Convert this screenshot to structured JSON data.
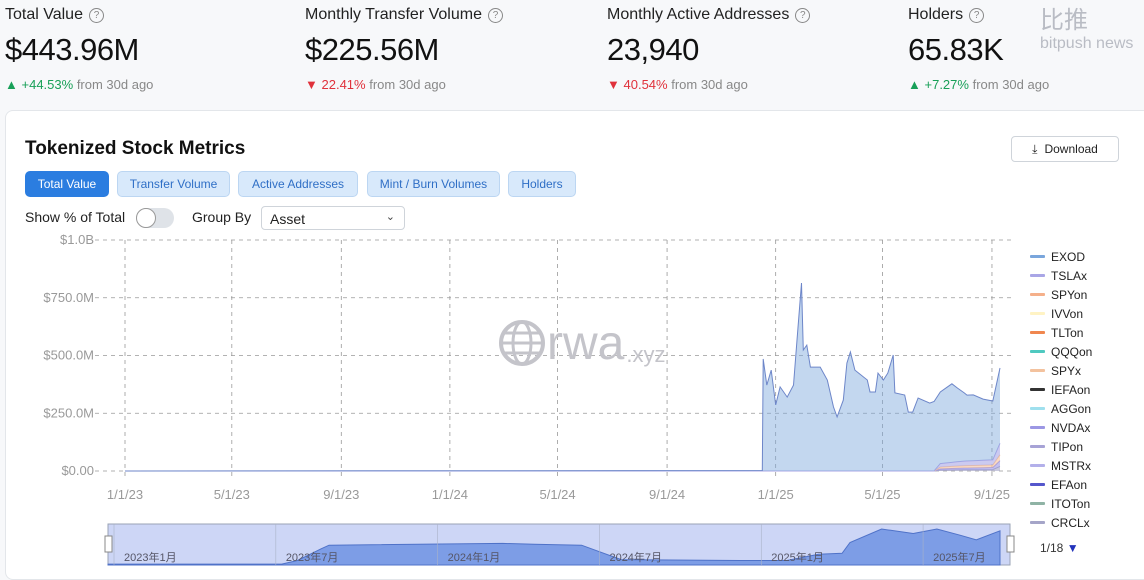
{
  "stats": [
    {
      "label": "Total Value",
      "value": "$443.96M",
      "change": "+44.53%",
      "direction": "up",
      "suffix": "from 30d ago"
    },
    {
      "label": "Monthly Transfer Volume",
      "value": "$225.56M",
      "change": "22.41%",
      "direction": "down",
      "suffix": "from 30d ago"
    },
    {
      "label": "Monthly Active Addresses",
      "value": "23,940",
      "change": "40.54%",
      "direction": "down",
      "suffix": "from 30d ago"
    },
    {
      "label": "Holders",
      "value": "65.83K",
      "change": "+7.27%",
      "direction": "up",
      "suffix": "from 30d ago"
    }
  ],
  "card": {
    "title": "Tokenized Stock Metrics",
    "download_label": "Download"
  },
  "tabs": [
    {
      "label": "Total Value",
      "active": true
    },
    {
      "label": "Transfer Volume"
    },
    {
      "label": "Active Addresses"
    },
    {
      "label": "Mint / Burn Volumes"
    },
    {
      "label": "Holders"
    }
  ],
  "controls": {
    "show_pct_label": "Show % of Total",
    "show_pct_on": false,
    "group_by_label": "Group By",
    "group_by_value": "Asset"
  },
  "watermark": {
    "text": "rwa",
    "suffix": ".xyz"
  },
  "logo": {
    "text": "bitpush news",
    "cn": "比推"
  },
  "legend_page": "1/18",
  "colors": {
    "accent": "#2b7de0",
    "up": "#18a058",
    "down": "#e0313b"
  },
  "chart_data": {
    "type": "area",
    "stacked": true,
    "grid": true,
    "legend_placement": "right",
    "ylim": [
      0,
      1000000000
    ],
    "yticks": [
      {
        "v": 0,
        "label": "$0.00"
      },
      {
        "v": 250000000,
        "label": "$250.0M"
      },
      {
        "v": 500000000,
        "label": "$500.0M"
      },
      {
        "v": 750000000,
        "label": "$750.0M"
      },
      {
        "v": 1000000000,
        "label": "$1.0B"
      }
    ],
    "xticks": [
      {
        "d": "2023-01-01",
        "label": "1/1/23"
      },
      {
        "d": "2023-05-01",
        "label": "5/1/23"
      },
      {
        "d": "2023-09-01",
        "label": "9/1/23"
      },
      {
        "d": "2024-01-01",
        "label": "1/1/24"
      },
      {
        "d": "2024-05-01",
        "label": "5/1/24"
      },
      {
        "d": "2024-09-01",
        "label": "9/1/24"
      },
      {
        "d": "2025-01-01",
        "label": "1/1/25"
      },
      {
        "d": "2025-05-01",
        "label": "5/1/25"
      },
      {
        "d": "2025-09-01",
        "label": "9/1/25"
      }
    ],
    "navigator_ticks": [
      "2023年1月",
      "2023年7月",
      "2024年1月",
      "2024年7月",
      "2025年1月",
      "2025年7月"
    ],
    "legend": [
      {
        "name": "EXOD",
        "color": "#7aa6dc"
      },
      {
        "name": "TSLAx",
        "color": "#a9a6e6"
      },
      {
        "name": "SPYon",
        "color": "#f5b08a"
      },
      {
        "name": "IVVon",
        "color": "#fff3c4"
      },
      {
        "name": "TLTon",
        "color": "#f0874f"
      },
      {
        "name": "QQQon",
        "color": "#4fc9c0"
      },
      {
        "name": "SPYx",
        "color": "#f3c29e"
      },
      {
        "name": "IEFAon",
        "color": "#333333"
      },
      {
        "name": "AGGon",
        "color": "#9fe0ee"
      },
      {
        "name": "NVDAx",
        "color": "#9c97e4"
      },
      {
        "name": "TIPon",
        "color": "#a7a3d6"
      },
      {
        "name": "MSTRx",
        "color": "#b3b0ea"
      },
      {
        "name": "EFAon",
        "color": "#5557cc"
      },
      {
        "name": "ITOTon",
        "color": "#8fb3a5"
      },
      {
        "name": "CRCLx",
        "color": "#a5a5c8"
      }
    ],
    "series": [
      {
        "name": "EXOD",
        "points": [
          [
            "2023-01-01",
            0
          ],
          [
            "2024-12-17",
            2
          ],
          [
            "2024-12-18",
            485
          ],
          [
            "2024-12-22",
            372
          ],
          [
            "2024-12-27",
            437
          ],
          [
            "2025-01-01",
            286
          ],
          [
            "2025-01-06",
            364
          ],
          [
            "2025-01-14",
            320
          ],
          [
            "2025-01-21",
            372
          ],
          [
            "2025-01-25",
            567
          ],
          [
            "2025-01-30",
            814
          ],
          [
            "2025-02-01",
            524
          ],
          [
            "2025-02-05",
            545
          ],
          [
            "2025-02-09",
            450
          ],
          [
            "2025-02-20",
            450
          ],
          [
            "2025-02-28",
            394
          ],
          [
            "2025-03-07",
            277
          ],
          [
            "2025-03-11",
            234
          ],
          [
            "2025-03-18",
            307
          ],
          [
            "2025-03-22",
            467
          ],
          [
            "2025-03-26",
            515
          ],
          [
            "2025-03-31",
            437
          ],
          [
            "2025-04-14",
            394
          ],
          [
            "2025-04-17",
            342
          ],
          [
            "2025-04-23",
            342
          ],
          [
            "2025-04-26",
            424
          ],
          [
            "2025-05-02",
            394
          ],
          [
            "2025-05-07",
            424
          ],
          [
            "2025-05-13",
            502
          ],
          [
            "2025-05-15",
            338
          ],
          [
            "2025-05-26",
            329
          ],
          [
            "2025-05-30",
            255
          ],
          [
            "2025-06-04",
            255
          ],
          [
            "2025-06-10",
            316
          ],
          [
            "2025-06-23",
            294
          ],
          [
            "2025-07-05",
            310
          ],
          [
            "2025-07-18",
            340
          ],
          [
            "2025-07-24",
            320
          ],
          [
            "2025-08-04",
            285
          ],
          [
            "2025-08-11",
            285
          ],
          [
            "2025-08-22",
            265
          ],
          [
            "2025-09-02",
            255
          ],
          [
            "2025-09-10",
            326
          ]
        ]
      },
      {
        "name": "TSLAx",
        "points": [
          [
            "2023-01-01",
            0
          ],
          [
            "2025-06-28",
            0
          ],
          [
            "2025-07-05",
            15
          ],
          [
            "2025-08-01",
            20
          ],
          [
            "2025-09-02",
            22
          ],
          [
            "2025-09-10",
            50
          ]
        ]
      },
      {
        "name": "SPYx",
        "points": [
          [
            "2023-01-01",
            0
          ],
          [
            "2025-06-28",
            0
          ],
          [
            "2025-07-05",
            8
          ],
          [
            "2025-08-01",
            10
          ],
          [
            "2025-09-02",
            11
          ],
          [
            "2025-09-10",
            25
          ]
        ]
      },
      {
        "name": "NVDAx",
        "points": [
          [
            "2023-01-01",
            0
          ],
          [
            "2025-06-28",
            0
          ],
          [
            "2025-07-05",
            5
          ],
          [
            "2025-08-01",
            8
          ],
          [
            "2025-09-02",
            9
          ],
          [
            "2025-09-10",
            25
          ]
        ]
      },
      {
        "name": "CRCLx",
        "points": [
          [
            "2023-01-01",
            0
          ],
          [
            "2025-06-28",
            0
          ],
          [
            "2025-07-05",
            4
          ],
          [
            "2025-08-01",
            5
          ],
          [
            "2025-09-02",
            6
          ],
          [
            "2025-09-10",
            20
          ]
        ]
      }
    ],
    "value_unit": "millions USD"
  }
}
